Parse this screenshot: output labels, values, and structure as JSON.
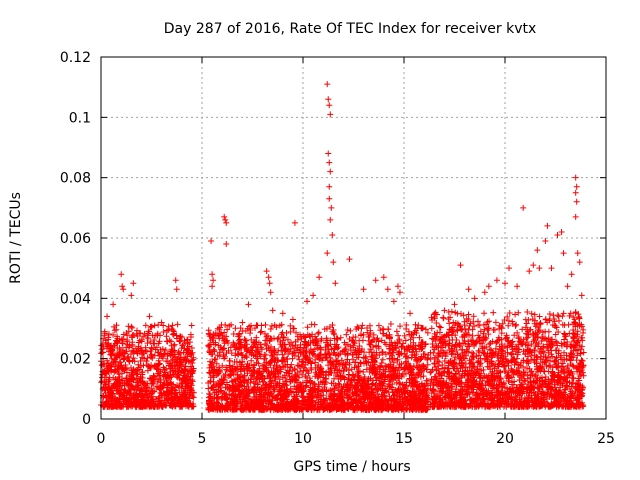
{
  "chart_data": {
    "type": "scatter",
    "title": "Day 287 of 2016, Rate Of TEC Index for receiver kvtx",
    "xlabel": "GPS time / hours",
    "ylabel": "ROTI / TECUs",
    "xlim": [
      0,
      25
    ],
    "ylim": [
      0,
      0.12
    ],
    "xticks": [
      0,
      5,
      10,
      15,
      20,
      25
    ],
    "xtick_labels": [
      "0",
      "5",
      "10",
      "15",
      "20",
      "25"
    ],
    "yticks": [
      0,
      0.02,
      0.04,
      0.06,
      0.08,
      0.1,
      0.12
    ],
    "ytick_labels": [
      "0",
      "0.02",
      "0.04",
      "0.06",
      "0.08",
      "0.1",
      "0.12"
    ],
    "grid": true,
    "marker": "+",
    "color": "#ff0000",
    "series": [
      {
        "name": "ROTI",
        "segments": [
          {
            "x_range": [
              0.0,
              4.6
            ],
            "y_low": 0.004,
            "y_high": 0.03
          },
          {
            "x_range": [
              5.3,
              16.2
            ],
            "y_low": 0.003,
            "y_high": 0.03
          },
          {
            "x_range": [
              16.3,
              23.9
            ],
            "y_low": 0.004,
            "y_high": 0.034
          }
        ],
        "outliers": [
          [
            0.3,
            0.034
          ],
          [
            0.6,
            0.038
          ],
          [
            1.0,
            0.048
          ],
          [
            1.05,
            0.044
          ],
          [
            1.1,
            0.043
          ],
          [
            1.5,
            0.041
          ],
          [
            1.6,
            0.045
          ],
          [
            2.4,
            0.034
          ],
          [
            3.0,
            0.032
          ],
          [
            3.6,
            0.029
          ],
          [
            3.7,
            0.046
          ],
          [
            3.75,
            0.043
          ],
          [
            4.3,
            0.022
          ],
          [
            5.45,
            0.059
          ],
          [
            5.5,
            0.048
          ],
          [
            5.55,
            0.046
          ],
          [
            5.5,
            0.044
          ],
          [
            6.1,
            0.067
          ],
          [
            6.15,
            0.066
          ],
          [
            6.2,
            0.065
          ],
          [
            6.2,
            0.058
          ],
          [
            7.0,
            0.032
          ],
          [
            7.3,
            0.038
          ],
          [
            8.2,
            0.049
          ],
          [
            8.3,
            0.047
          ],
          [
            8.35,
            0.045
          ],
          [
            8.4,
            0.042
          ],
          [
            8.5,
            0.036
          ],
          [
            9.0,
            0.035
          ],
          [
            9.5,
            0.033
          ],
          [
            9.6,
            0.065
          ],
          [
            10.2,
            0.039
          ],
          [
            10.5,
            0.041
          ],
          [
            10.8,
            0.047
          ],
          [
            11.2,
            0.111
          ],
          [
            11.25,
            0.106
          ],
          [
            11.3,
            0.104
          ],
          [
            11.35,
            0.101
          ],
          [
            11.25,
            0.088
          ],
          [
            11.3,
            0.085
          ],
          [
            11.35,
            0.082
          ],
          [
            11.3,
            0.077
          ],
          [
            11.3,
            0.073
          ],
          [
            11.4,
            0.07
          ],
          [
            11.35,
            0.066
          ],
          [
            11.45,
            0.061
          ],
          [
            11.2,
            0.055
          ],
          [
            11.5,
            0.052
          ],
          [
            11.6,
            0.045
          ],
          [
            12.3,
            0.053
          ],
          [
            13.0,
            0.043
          ],
          [
            13.6,
            0.046
          ],
          [
            14.0,
            0.047
          ],
          [
            14.2,
            0.043
          ],
          [
            14.5,
            0.039
          ],
          [
            14.7,
            0.044
          ],
          [
            14.8,
            0.042
          ],
          [
            15.3,
            0.035
          ],
          [
            17.0,
            0.036
          ],
          [
            17.5,
            0.038
          ],
          [
            17.8,
            0.051
          ],
          [
            18.2,
            0.043
          ],
          [
            18.5,
            0.04
          ],
          [
            19.0,
            0.042
          ],
          [
            19.2,
            0.044
          ],
          [
            19.6,
            0.046
          ],
          [
            20.0,
            0.045
          ],
          [
            20.2,
            0.05
          ],
          [
            20.6,
            0.044
          ],
          [
            20.9,
            0.07
          ],
          [
            21.2,
            0.049
          ],
          [
            21.4,
            0.051
          ],
          [
            21.6,
            0.056
          ],
          [
            21.7,
            0.05
          ],
          [
            22.0,
            0.059
          ],
          [
            22.1,
            0.064
          ],
          [
            22.3,
            0.05
          ],
          [
            22.6,
            0.061
          ],
          [
            22.8,
            0.062
          ],
          [
            22.9,
            0.055
          ],
          [
            23.1,
            0.044
          ],
          [
            23.3,
            0.048
          ],
          [
            23.5,
            0.08
          ],
          [
            23.55,
            0.077
          ],
          [
            23.5,
            0.075
          ],
          [
            23.55,
            0.072
          ],
          [
            23.5,
            0.067
          ],
          [
            23.6,
            0.055
          ],
          [
            23.7,
            0.052
          ],
          [
            23.8,
            0.041
          ]
        ]
      }
    ]
  }
}
